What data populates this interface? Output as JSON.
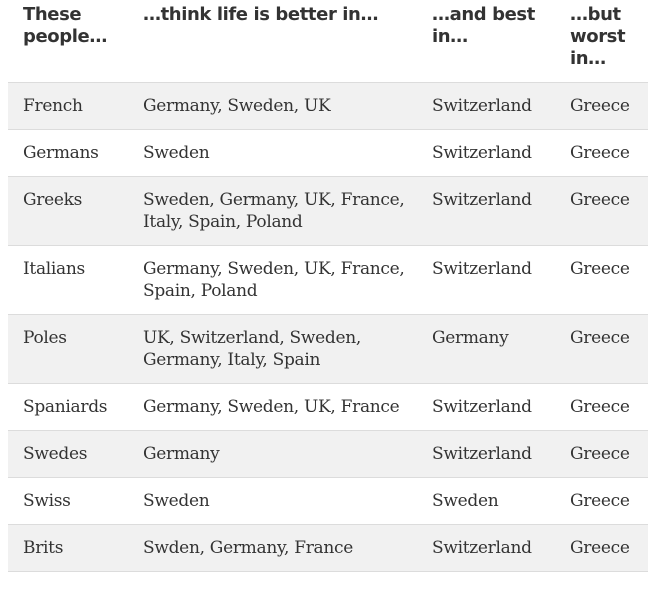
{
  "table": {
    "headers": [
      "These people…",
      "…think life is better in…",
      "…and best in…",
      "…but worst in…"
    ],
    "rows": [
      [
        "French",
        "Germany, Sweden, UK",
        "Switzerland",
        "Greece"
      ],
      [
        "Germans",
        "Sweden",
        "Switzerland",
        "Greece"
      ],
      [
        "Greeks",
        "Sweden, Germany, UK, France, Italy, Spain, Poland",
        "Switzerland",
        "Greece"
      ],
      [
        "Italians",
        "Germany, Sweden, UK, France, Spain, Poland",
        "Switzerland",
        "Greece"
      ],
      [
        "Poles",
        "UK, Switzerland, Sweden, Germany, Italy, Spain",
        "Germany",
        "Greece"
      ],
      [
        "Spaniards",
        "Germany, Sweden, UK, France",
        "Switzerland",
        "Greece"
      ],
      [
        "Swedes",
        "Germany",
        "Switzerland",
        "Greece"
      ],
      [
        "Swiss",
        "Sweden",
        "Sweden",
        "Greece"
      ],
      [
        "Brits",
        "Swden, Germany, France",
        "Switzerland",
        "Greece"
      ]
    ]
  }
}
